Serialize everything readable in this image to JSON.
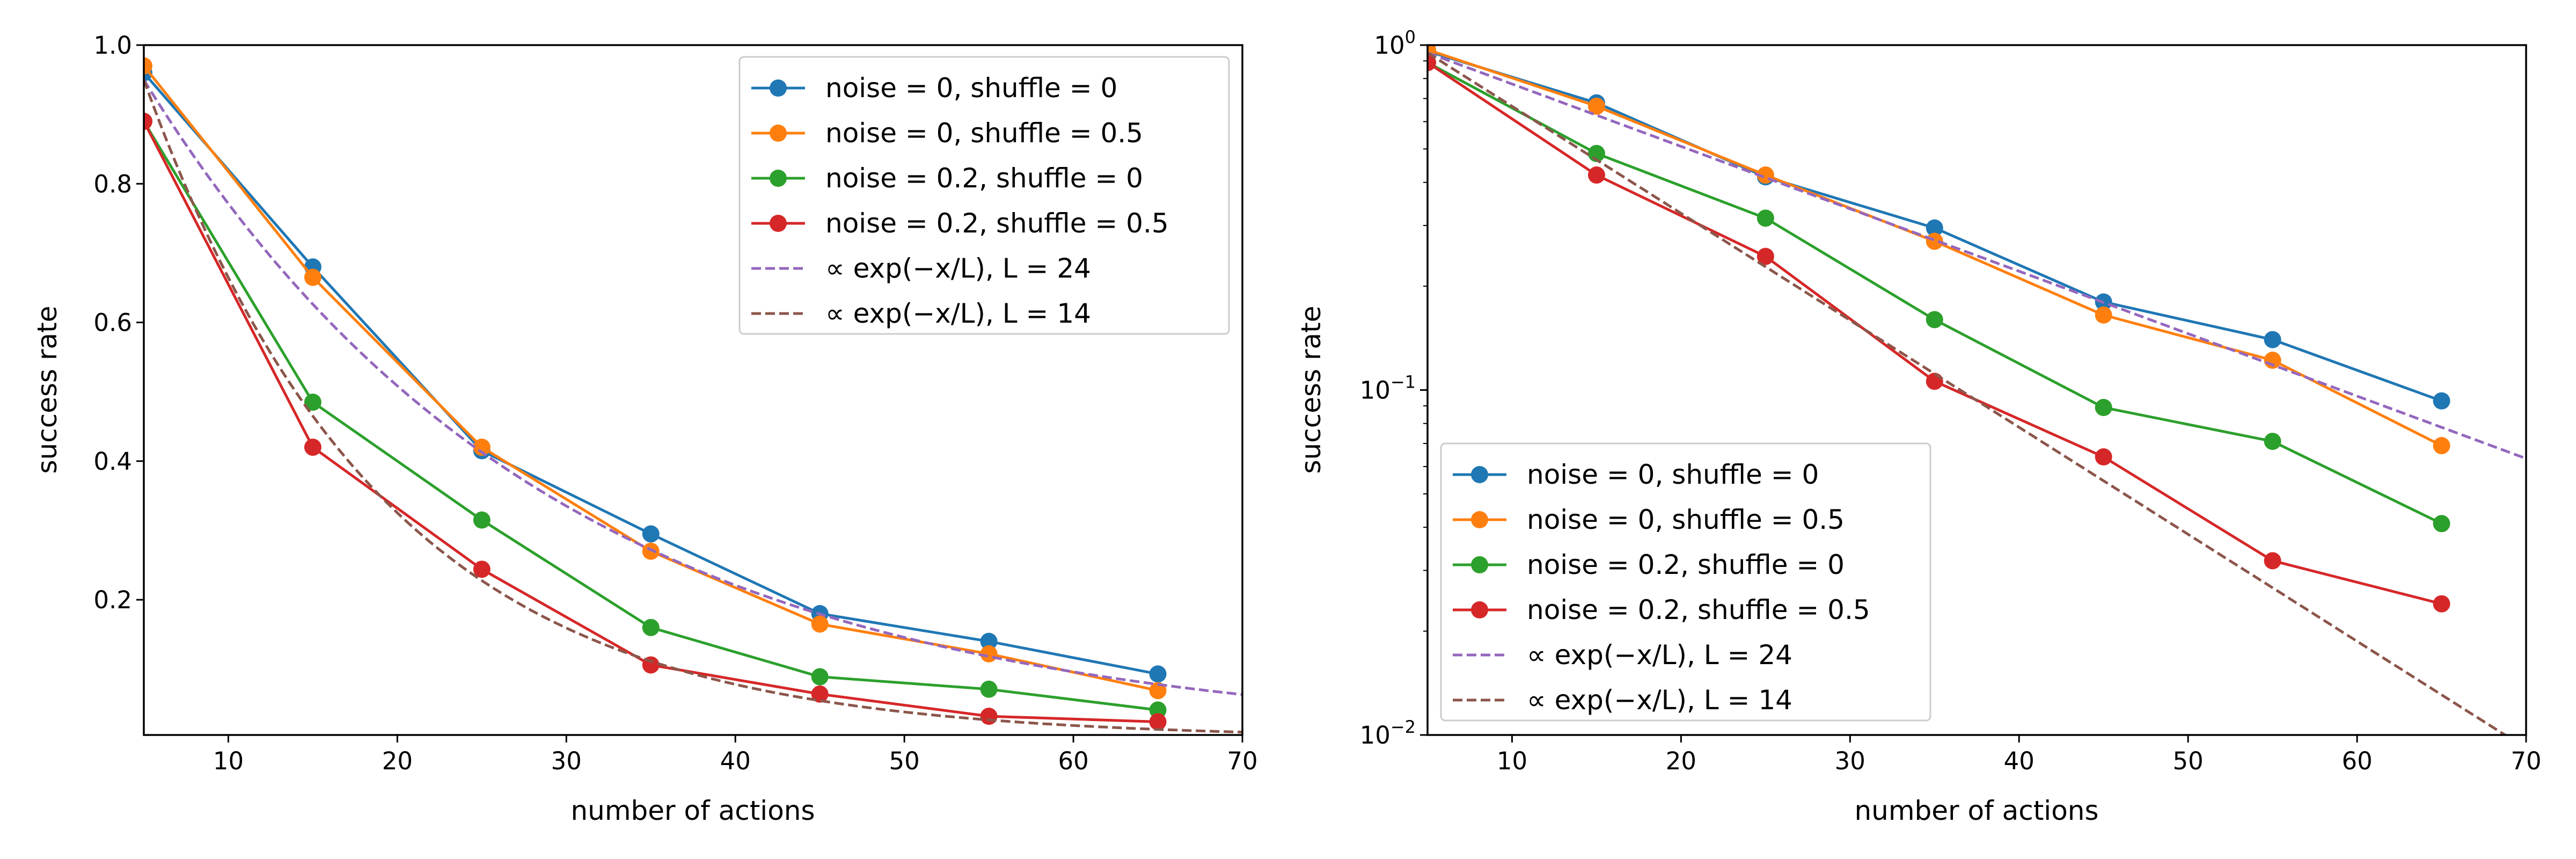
{
  "chart_data": [
    {
      "type": "line",
      "yscale": "linear",
      "xlabel": "number of actions",
      "ylabel": "success rate",
      "xlim": [
        5,
        70
      ],
      "ylim": [
        0.005,
        1.0
      ],
      "xticks": [
        10,
        20,
        30,
        40,
        50,
        60,
        70
      ],
      "xtick_labels": [
        "10",
        "20",
        "30",
        "40",
        "50",
        "60",
        "70"
      ],
      "yticks": [
        0.2,
        0.4,
        0.6,
        0.8,
        1.0
      ],
      "ytick_labels": [
        "0.2",
        "0.4",
        "0.6",
        "0.8",
        "1.0"
      ],
      "legend_position": "top-right",
      "series": [
        {
          "name": "noise = 0, shuffle = 0",
          "color": "#1f77b4",
          "style": "solid-marker",
          "x": [
            5,
            15,
            25,
            35,
            45,
            55,
            65
          ],
          "values": [
            0.96,
            0.68,
            0.415,
            0.295,
            0.18,
            0.14,
            0.093
          ]
        },
        {
          "name": "noise = 0, shuffle = 0.5",
          "color": "#ff7f0e",
          "style": "solid-marker",
          "x": [
            5,
            15,
            25,
            35,
            45,
            55,
            65
          ],
          "values": [
            0.97,
            0.665,
            0.42,
            0.27,
            0.165,
            0.122,
            0.069
          ]
        },
        {
          "name": "noise = 0.2, shuffle = 0",
          "color": "#2ca02c",
          "style": "solid-marker",
          "x": [
            5,
            15,
            25,
            35,
            45,
            55,
            65
          ],
          "values": [
            0.89,
            0.485,
            0.315,
            0.16,
            0.089,
            0.071,
            0.041
          ]
        },
        {
          "name": "noise = 0.2, shuffle = 0.5",
          "color": "#d62728",
          "style": "solid-marker",
          "x": [
            5,
            15,
            25,
            35,
            45,
            55,
            65
          ],
          "values": [
            0.89,
            0.42,
            0.244,
            0.106,
            0.064,
            0.032,
            0.024
          ]
        },
        {
          "name": "∝ exp(−x/L),  L = 24",
          "color": "#9467bd",
          "style": "dashed",
          "fit": {
            "a": 0.95,
            "x0": 5,
            "L": 24
          }
        },
        {
          "name": "∝ exp(−x/L),  L = 14",
          "color": "#8c564b",
          "style": "dashed",
          "fit": {
            "a": 0.95,
            "x0": 5,
            "L": 14
          }
        }
      ]
    },
    {
      "type": "line",
      "yscale": "log",
      "xlabel": "number of actions",
      "ylabel": "success rate",
      "xlim": [
        5,
        70
      ],
      "ylim": [
        0.01,
        1.0
      ],
      "xticks": [
        10,
        20,
        30,
        40,
        50,
        60,
        70
      ],
      "xtick_labels": [
        "10",
        "20",
        "30",
        "40",
        "50",
        "60",
        "70"
      ],
      "yticks": [
        0.01,
        0.1,
        1.0
      ],
      "ytick_labels": [
        {
          "base": "10",
          "exp": "−2"
        },
        {
          "base": "10",
          "exp": "−1"
        },
        {
          "base": "10",
          "exp": "0"
        }
      ],
      "legend_position": "bottom-left",
      "series": [
        {
          "name": "noise = 0, shuffle = 0",
          "color": "#1f77b4",
          "style": "solid-marker",
          "x": [
            5,
            15,
            25,
            35,
            45,
            55,
            65
          ],
          "values": [
            0.96,
            0.68,
            0.415,
            0.295,
            0.18,
            0.14,
            0.093
          ]
        },
        {
          "name": "noise = 0, shuffle = 0.5",
          "color": "#ff7f0e",
          "style": "solid-marker",
          "x": [
            5,
            15,
            25,
            35,
            45,
            55,
            65
          ],
          "values": [
            0.97,
            0.665,
            0.42,
            0.27,
            0.165,
            0.122,
            0.069
          ]
        },
        {
          "name": "noise = 0.2, shuffle = 0",
          "color": "#2ca02c",
          "style": "solid-marker",
          "x": [
            5,
            15,
            25,
            35,
            45,
            55,
            65
          ],
          "values": [
            0.89,
            0.485,
            0.315,
            0.16,
            0.089,
            0.071,
            0.041
          ]
        },
        {
          "name": "noise = 0.2, shuffle = 0.5",
          "color": "#d62728",
          "style": "solid-marker",
          "x": [
            5,
            15,
            25,
            35,
            45,
            55,
            65
          ],
          "values": [
            0.89,
            0.42,
            0.244,
            0.106,
            0.064,
            0.032,
            0.024
          ]
        },
        {
          "name": "∝ exp(−x/L),  L = 24",
          "color": "#9467bd",
          "style": "dashed",
          "fit": {
            "a": 0.95,
            "x0": 5,
            "L": 24
          }
        },
        {
          "name": "∝ exp(−x/L),  L = 14",
          "color": "#8c564b",
          "style": "dashed",
          "fit": {
            "a": 0.95,
            "x0": 5,
            "L": 14
          }
        }
      ]
    }
  ]
}
